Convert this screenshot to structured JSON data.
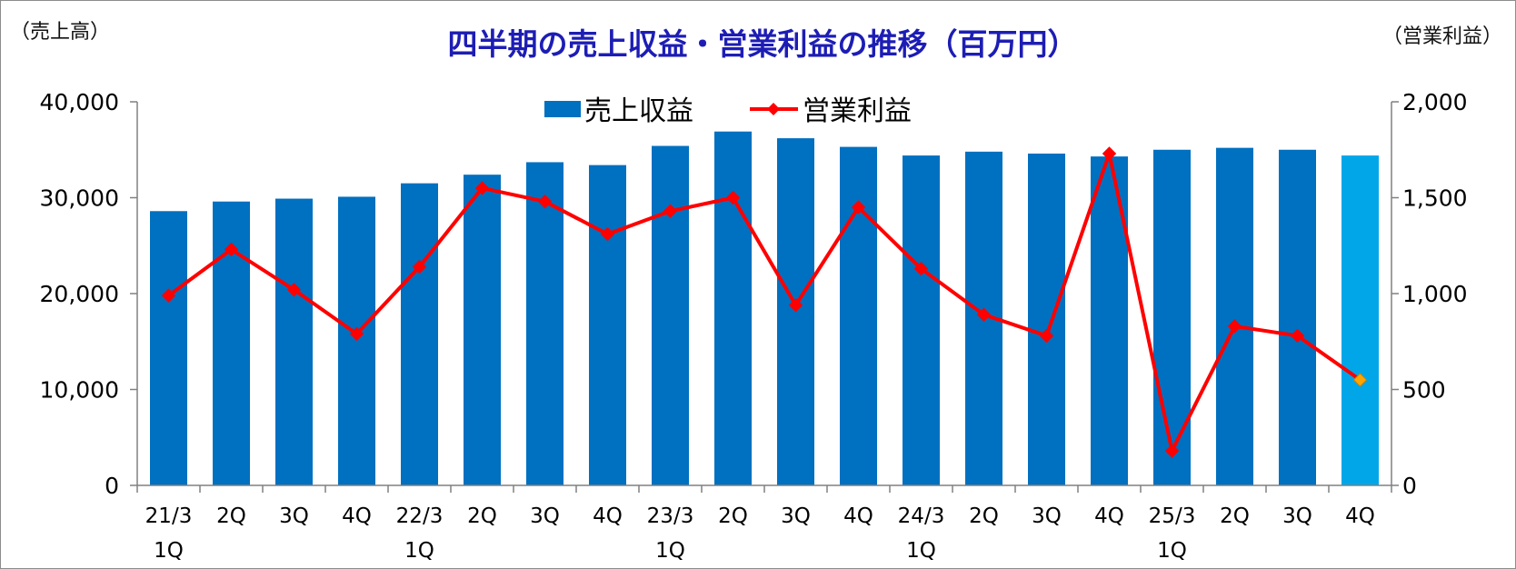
{
  "chart_data": {
    "type": "bar",
    "title": "四半期の売上収益・営業利益の推移（百万円）",
    "left_axis_unit": "（売上高）",
    "right_axis_unit": "（営業利益）",
    "categories": [
      {
        "line1": "21/3",
        "line2": "1Q"
      },
      {
        "line1": "2Q",
        "line2": ""
      },
      {
        "line1": "3Q",
        "line2": ""
      },
      {
        "line1": "4Q",
        "line2": ""
      },
      {
        "line1": "22/3",
        "line2": "1Q"
      },
      {
        "line1": "2Q",
        "line2": ""
      },
      {
        "line1": "3Q",
        "line2": ""
      },
      {
        "line1": "4Q",
        "line2": ""
      },
      {
        "line1": "23/3",
        "line2": "1Q"
      },
      {
        "line1": "2Q",
        "line2": ""
      },
      {
        "line1": "3Q",
        "line2": ""
      },
      {
        "line1": "4Q",
        "line2": ""
      },
      {
        "line1": "24/3",
        "line2": "1Q"
      },
      {
        "line1": "2Q",
        "line2": ""
      },
      {
        "line1": "3Q",
        "line2": ""
      },
      {
        "line1": "4Q",
        "line2": ""
      },
      {
        "line1": "25/3",
        "line2": "1Q"
      },
      {
        "line1": "2Q",
        "line2": ""
      },
      {
        "line1": "3Q",
        "line2": ""
      },
      {
        "line1": "4Q",
        "line2": ""
      }
    ],
    "series": [
      {
        "name": "売上収益",
        "type": "bar",
        "axis": "left",
        "color": "#0070c0",
        "highlight_color": "#00a6e8",
        "highlight_index": 19,
        "values": [
          28600,
          29600,
          29900,
          30100,
          31500,
          32400,
          33700,
          33400,
          35400,
          36900,
          36200,
          35300,
          34400,
          34800,
          34600,
          34300,
          35000,
          35200,
          35000,
          34400
        ]
      },
      {
        "name": "営業利益",
        "type": "line",
        "axis": "right",
        "color": "#ff0000",
        "highlight_color": "#ffa500",
        "highlight_index": 19,
        "values": [
          990,
          1230,
          1020,
          790,
          1140,
          1550,
          1480,
          1310,
          1430,
          1500,
          940,
          1450,
          1130,
          890,
          780,
          1730,
          180,
          830,
          780,
          550
        ]
      }
    ],
    "left_axis": {
      "min": 0,
      "max": 40000,
      "ticks": [
        "0",
        "10,000",
        "20,000",
        "30,000",
        "40,000"
      ]
    },
    "right_axis": {
      "min": 0,
      "max": 2000,
      "ticks": [
        "0",
        "500",
        "1,000",
        "1,500",
        "2,000"
      ]
    },
    "legend_position": "top-center",
    "grid": false
  }
}
